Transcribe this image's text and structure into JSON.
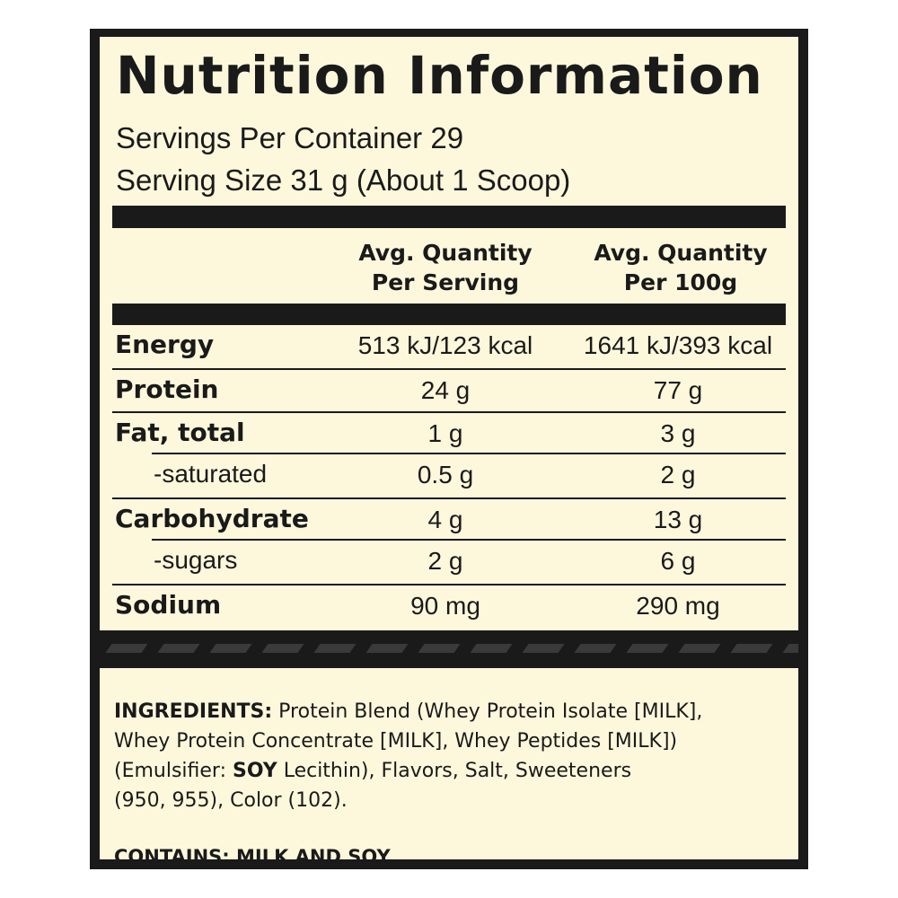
{
  "panel": {
    "title": "Nutrition Information",
    "servings_per_container": "Servings Per Container 29",
    "serving_size": "Serving Size 31 g (About 1 Scoop)"
  },
  "columns": {
    "col1_line1": "Avg. Quantity",
    "col1_line2": "Per Serving",
    "col2_line1": "Avg. Quantity",
    "col2_line2": "Per 100g"
  },
  "nutrients": [
    {
      "name": "Energy",
      "per_serving": "513 kJ/123 kcal",
      "per_100g": "1641 kJ/393 kcal",
      "style": "bold"
    },
    {
      "name": "Protein",
      "per_serving": "24 g",
      "per_100g": "77 g",
      "style": "bold"
    },
    {
      "name": "Fat, total",
      "per_serving": "1 g",
      "per_100g": "3 g",
      "style": "bold"
    },
    {
      "name": "-saturated",
      "per_serving": "0.5 g",
      "per_100g": "2 g",
      "style": "sub"
    },
    {
      "name": "Carbohydrate",
      "per_serving": "4 g",
      "per_100g": "13 g",
      "style": "bold"
    },
    {
      "name": "-sugars",
      "per_serving": "2 g",
      "per_100g": "6 g",
      "style": "sub"
    },
    {
      "name": "Sodium",
      "per_serving": "90 mg",
      "per_100g": "290 mg",
      "style": "bold"
    }
  ],
  "ingredients": {
    "label": "INGREDIENTS:",
    "line1": "Protein Blend (Whey Protein Isolate [MILK],",
    "line2": "Whey Protein Concentrate [MILK], Whey Peptides [MILK])",
    "line3_a": "(Emulsifier: ",
    "line3_soy": "SOY",
    "line3_b": " Lecithin), Flavors, Salt, Sweeteners",
    "line4": "(950, 955), Color (102)."
  },
  "contains": "CONTAINS: MILK AND SOY.",
  "colors": {
    "panel_background": "#fdf8dc",
    "border_dark": "#1a1a1a"
  }
}
